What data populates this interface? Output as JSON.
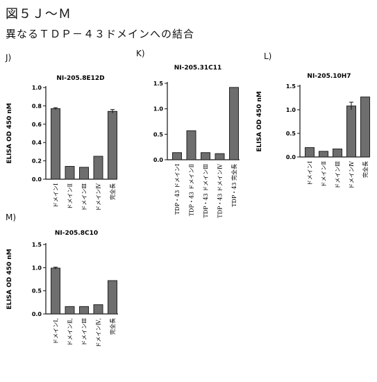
{
  "figure": {
    "title": "図５Ｊ〜Ｍ",
    "subtitle": "異なるＴＤＰ－４３ドメインへの結合"
  },
  "chart_data": [
    {
      "panel": "J)",
      "type": "bar",
      "title": "NI-205.8E12D",
      "ylabel": "ELISA OD 450 nM",
      "ylim": [
        0,
        1.0
      ],
      "yticks": [
        "0.0",
        "0.2",
        "0.4",
        "0.6",
        "0.8",
        "1.0"
      ],
      "categories": [
        "ドメインⅠ",
        "ドメインⅡ",
        "ドメインⅢ",
        "ドメインⅣ",
        "完全長"
      ],
      "values": [
        0.77,
        0.14,
        0.13,
        0.25,
        0.74
      ],
      "errors": [
        0.01,
        0.0,
        0.0,
        0.0,
        0.02
      ]
    },
    {
      "panel": "K)",
      "type": "bar",
      "title": "NI-205.31C11",
      "ylabel": "ELISA OD 450 nM",
      "ylim": [
        0,
        1.5
      ],
      "yticks": [
        "0.0",
        "0.5",
        "1.0",
        "1.5"
      ],
      "categories": [
        "TDP・43 ドメインⅠ",
        "TDP・43 ドメインⅡ",
        "TDP・43 ドメインⅢ",
        "TDP・43 ドメインⅣ",
        "TDP・43 完全長"
      ],
      "values": [
        0.14,
        0.57,
        0.14,
        0.12,
        1.42
      ],
      "errors": [
        0.0,
        0.0,
        0.0,
        0.0,
        0.0
      ]
    },
    {
      "panel": "L)",
      "type": "bar",
      "title": "NI-205.10H7",
      "ylabel": "ELISA OD 450 nM",
      "ylim": [
        0,
        1.5
      ],
      "yticks": [
        "0.0",
        "0.5",
        "1.0",
        "1.5"
      ],
      "categories": [
        "ドメインⅠ",
        "ドメインⅡ",
        "ドメインⅢ",
        "ドメインⅣ",
        "完全長"
      ],
      "values": [
        0.2,
        0.12,
        0.17,
        1.08,
        1.27
      ],
      "errors": [
        0.0,
        0.0,
        0.0,
        0.08,
        0.0
      ]
    },
    {
      "panel": "M)",
      "type": "bar",
      "title": "NI-205.8C10",
      "ylabel": "ELISA OD 450 nM",
      "ylim": [
        0,
        1.5
      ],
      "yticks": [
        "0.0",
        "0.5",
        "1.0",
        "1.5"
      ],
      "categories": [
        "ドメインⅠ,",
        "ドメインⅡ,",
        "ドメインⅢ",
        "ドメインⅣ,",
        "完全長"
      ],
      "values": [
        0.99,
        0.16,
        0.16,
        0.2,
        0.72
      ],
      "errors": [
        0.02,
        0.0,
        0.0,
        0.0,
        0.0
      ]
    }
  ],
  "colors": {
    "bar": "#6e6e6e",
    "bar_stroke": "#222222",
    "axis": "#111111"
  }
}
